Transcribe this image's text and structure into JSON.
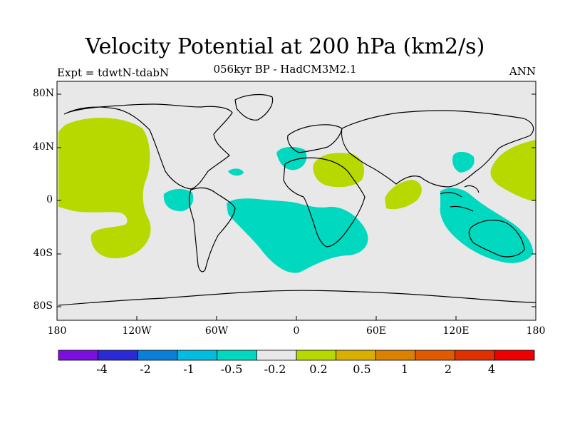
{
  "header": {
    "title": "Velocity Potential at 200 hPa (km2/s)",
    "subtitle": "056kyr BP - HadCM3M2.1",
    "left_label": "Expt = tdwtN-tdabN",
    "right_label": "ANN"
  },
  "axes": {
    "lat_ticks": [
      "80N",
      "40N",
      "0",
      "40S",
      "80S"
    ],
    "lon_ticks": [
      "180",
      "120W",
      "60W",
      "0",
      "60E",
      "120E",
      "180"
    ]
  },
  "colorbar": {
    "colors": [
      "#7d0ee0",
      "#2a2ad6",
      "#0a7fd8",
      "#00bde0",
      "#00d9c0",
      "#e8e8e8",
      "#b7d900",
      "#d9b000",
      "#db8000",
      "#e05a00",
      "#e03000",
      "#ee0000"
    ],
    "labels": [
      "-4",
      "-2",
      "-1",
      "-0.5",
      "-0.2",
      "0.2",
      "0.5",
      "1",
      "2",
      "4"
    ]
  },
  "map": {
    "background_color": "#e8e8e8",
    "positive_color": "#b7d900",
    "negative_color": "#00d9c0",
    "coastline_color": "#000000"
  }
}
